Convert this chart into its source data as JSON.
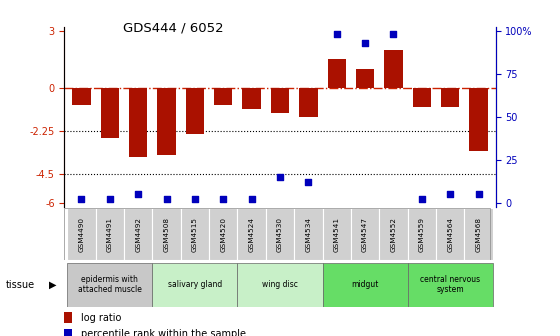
{
  "title": "GDS444 / 6052",
  "samples": [
    "GSM4490",
    "GSM4491",
    "GSM4492",
    "GSM4508",
    "GSM4515",
    "GSM4520",
    "GSM4524",
    "GSM4530",
    "GSM4534",
    "GSM4541",
    "GSM4547",
    "GSM4552",
    "GSM4559",
    "GSM4564",
    "GSM4568"
  ],
  "log_ratio": [
    -0.9,
    -2.6,
    -3.6,
    -3.5,
    -2.4,
    -0.9,
    -1.1,
    -1.3,
    -1.5,
    1.5,
    1.0,
    2.0,
    -1.0,
    -1.0,
    -3.3
  ],
  "percentile": [
    2,
    2,
    5,
    2,
    2,
    2,
    2,
    15,
    12,
    98,
    93,
    98,
    2,
    5,
    5
  ],
  "tissue_groups": [
    {
      "label": "epidermis with\nattached muscle",
      "start": 0,
      "end": 2,
      "color": "#c8c8c8"
    },
    {
      "label": "salivary gland",
      "start": 3,
      "end": 5,
      "color": "#c8f0c8"
    },
    {
      "label": "wing disc",
      "start": 6,
      "end": 8,
      "color": "#c8f0c8"
    },
    {
      "label": "midgut",
      "start": 9,
      "end": 11,
      "color": "#66dd66"
    },
    {
      "label": "central nervous\nsystem",
      "start": 12,
      "end": 14,
      "color": "#66dd66"
    }
  ],
  "bar_color": "#aa1100",
  "dot_color": "#0000bb",
  "ymin": -6,
  "ymax": 3,
  "yticks_left": [
    -6,
    -4.5,
    -2.25,
    0,
    3
  ],
  "ytick_labels_left": [
    "-6",
    "-4.5",
    "-2.25",
    "0",
    "3"
  ],
  "yticks_pct": [
    0,
    25,
    50,
    75,
    100
  ],
  "ytick_labels_right": [
    "0",
    "25",
    "50",
    "75",
    "100%"
  ],
  "hline_zero_color": "#cc2200",
  "hline_dotted_color": "#000000"
}
